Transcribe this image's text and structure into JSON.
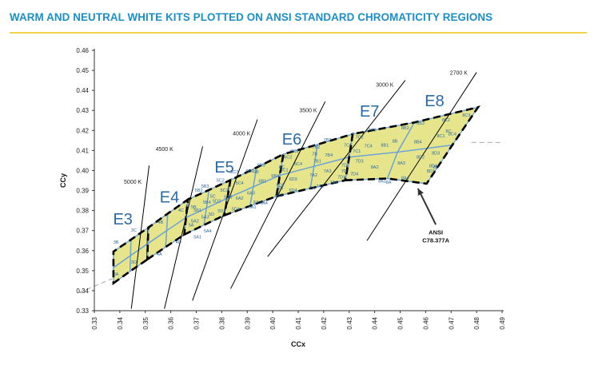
{
  "page": {
    "title": "WARM AND NEUTRAL WHITE KITS PLOTTED ON ANSI STANDARD CHROMATICITY REGIONS"
  },
  "colors": {
    "title": "#1a8fc9",
    "rule": "#f6d24a",
    "region_fill": "#e6e58c",
    "region_grid": "#6aa3d8",
    "dashed_boundary": "#000000",
    "label_blue": "#2a6aa8"
  },
  "chart_data": {
    "type": "scatter",
    "title": "",
    "xlabel": "CCx",
    "ylabel": "CCy",
    "xlim": [
      0.33,
      0.49
    ],
    "ylim": [
      0.33,
      0.46
    ],
    "x_ticks": [
      "0.33",
      "0.34",
      "0.35",
      "0.36",
      "0.37",
      "0.38",
      "0.39",
      "0.40",
      "0.41",
      "0.42",
      "0.43",
      "0.44",
      "0.45",
      "0.46",
      "0.47",
      "0.48",
      "0.49"
    ],
    "y_ticks": [
      "0.33",
      "0.34",
      "0.35",
      "0.36",
      "0.37",
      "0.38",
      "0.39",
      "0.40",
      "0.41",
      "0.42",
      "0.43",
      "0.44",
      "0.45",
      "0.46"
    ],
    "grid": "none",
    "cct_lines": [
      {
        "label": "5000 K",
        "from": [
          0.3445,
          0.331
        ],
        "to": [
          0.3515,
          0.4025
        ]
      },
      {
        "label": "4500 K",
        "from": [
          0.3575,
          0.331
        ],
        "to": [
          0.3725,
          0.412
        ]
      },
      {
        "label": "4000 K",
        "from": [
          0.3685,
          0.335
        ],
        "to": [
          0.394,
          0.4255
        ]
      },
      {
        "label": "3500 K",
        "from": [
          0.3835,
          0.341
        ],
        "to": [
          0.4206,
          0.4344
        ]
      },
      {
        "label": "3000 K",
        "from": [
          0.398,
          0.357
        ],
        "to": [
          0.452,
          0.445
        ]
      },
      {
        "label": "2700 K",
        "from": [
          0.437,
          0.365
        ],
        "to": [
          0.48,
          0.449
        ]
      }
    ],
    "cct_label_points": [
      {
        "label": "5000 K",
        "x": 0.3451,
        "y": 0.3935
      },
      {
        "label": "4500 K",
        "x": 0.3575,
        "y": 0.4097
      },
      {
        "label": "4000 K",
        "x": 0.3878,
        "y": 0.4176
      },
      {
        "label": "3500 K",
        "x": 0.4139,
        "y": 0.429
      },
      {
        "label": "3000 K",
        "x": 0.444,
        "y": 0.4419
      },
      {
        "label": "2700 K",
        "x": 0.473,
        "y": 0.4479
      }
    ],
    "regions": [
      {
        "label": "E3",
        "x": 0.3412,
        "y": 0.373,
        "grid": [
          [
            [
              0.3375,
              0.3437
            ],
            [
              0.344,
              0.3496
            ],
            [
              0.3508,
              0.3556
            ]
          ],
          [
            [
              0.3375,
              0.3515
            ],
            [
              0.3442,
              0.3575
            ],
            [
              0.351,
              0.3635
            ]
          ],
          [
            [
              0.3375,
              0.3595
            ],
            [
              0.3444,
              0.3655
            ],
            [
              0.3512,
              0.3715
            ]
          ]
        ]
      },
      {
        "label": "E4",
        "x": 0.3595,
        "y": 0.384,
        "grid": [
          [
            [
              0.3508,
              0.3556
            ],
            [
              0.358,
              0.3618
            ],
            [
              0.3653,
              0.368
            ]
          ],
          [
            [
              0.351,
              0.3635
            ],
            [
              0.3584,
              0.37
            ],
            [
              0.366,
              0.3765
            ]
          ],
          [
            [
              0.3512,
              0.3715
            ],
            [
              0.3588,
              0.3785
            ],
            [
              0.3667,
              0.3855
            ]
          ]
        ]
      },
      {
        "label": "E5",
        "x": 0.381,
        "y": 0.399,
        "grid": [
          [
            [
              0.3653,
              0.368
            ],
            [
              0.373,
              0.3728
            ],
            [
              0.381,
              0.3776
            ]
          ],
          [
            [
              0.366,
              0.3765
            ],
            [
              0.374,
              0.3813
            ],
            [
              0.3822,
              0.3862
            ]
          ],
          [
            [
              0.3667,
              0.3855
            ],
            [
              0.375,
              0.3903
            ],
            [
              0.3834,
              0.3952
            ]
          ]
        ]
      },
      {
        "label": "E6",
        "x": 0.4075,
        "y": 0.413,
        "grid": [
          [
            [
              0.381,
              0.3776
            ],
            [
              0.3911,
              0.3823
            ],
            [
              0.4015,
              0.3871
            ]
          ],
          [
            [
              0.3822,
              0.3862
            ],
            [
              0.3924,
              0.3919
            ],
            [
              0.4028,
              0.3976
            ]
          ],
          [
            [
              0.3834,
              0.3952
            ],
            [
              0.3937,
              0.4015
            ],
            [
              0.4042,
              0.4081
            ]
          ]
        ]
      },
      {
        "label": "E7",
        "x": 0.438,
        "y": 0.427,
        "grid": [
          [
            [
              0.4015,
              0.3871
            ],
            [
              0.4148,
              0.3911
            ],
            [
              0.4285,
              0.3951
            ]
          ],
          [
            [
              0.4028,
              0.3976
            ],
            [
              0.4162,
              0.4021
            ],
            [
              0.43,
              0.4067
            ]
          ],
          [
            [
              0.4042,
              0.4081
            ],
            [
              0.4176,
              0.413
            ],
            [
              0.4314,
              0.4182
            ]
          ]
        ]
      },
      {
        "label": "E8",
        "x": 0.4635,
        "y": 0.432,
        "grid": [
          [
            [
              0.4285,
              0.3951
            ],
            [
              0.445,
              0.396
            ],
            [
              0.4604,
              0.3934
            ]
          ],
          [
            [
              0.43,
              0.4067
            ],
            [
              0.449,
              0.4092
            ],
            [
              0.4705,
              0.4127
            ]
          ],
          [
            [
              0.4314,
              0.4182
            ],
            [
              0.4556,
              0.424
            ],
            [
              0.4806,
              0.4316
            ]
          ]
        ]
      }
    ],
    "cell_labels": [
      {
        "text": "3A",
        "x": 0.3385,
        "y": 0.3475
      },
      {
        "text": "3B",
        "x": 0.3385,
        "y": 0.3635
      },
      {
        "text": "3C",
        "x": 0.3455,
        "y": 0.3695
      },
      {
        "text": "3D",
        "x": 0.3455,
        "y": 0.3535
      },
      {
        "text": "4A",
        "x": 0.3555,
        "y": 0.3575
      },
      {
        "text": "4B",
        "x": 0.356,
        "y": 0.3735
      },
      {
        "text": "4C",
        "x": 0.364,
        "y": 0.3795
      },
      {
        "text": "4D",
        "x": 0.363,
        "y": 0.3635
      },
      {
        "text": "5A",
        "x": 0.368,
        "y": 0.372
      },
      {
        "text": "5B",
        "x": 0.369,
        "y": 0.381
      },
      {
        "text": "5C",
        "x": 0.3765,
        "y": 0.3865
      },
      {
        "text": "5D",
        "x": 0.376,
        "y": 0.3775
      },
      {
        "text": "5A1",
        "x": 0.3705,
        "y": 0.366
      },
      {
        "text": "5A2",
        "x": 0.3695,
        "y": 0.374
      },
      {
        "text": "5A3",
        "x": 0.3735,
        "y": 0.376
      },
      {
        "text": "5A4",
        "x": 0.3745,
        "y": 0.369
      },
      {
        "text": "5B1",
        "x": 0.3705,
        "y": 0.3795
      },
      {
        "text": "5B2",
        "x": 0.371,
        "y": 0.3895
      },
      {
        "text": "5B3",
        "x": 0.3735,
        "y": 0.3915
      },
      {
        "text": "5B4",
        "x": 0.3742,
        "y": 0.3835
      },
      {
        "text": "5C1",
        "x": 0.381,
        "y": 0.3895
      },
      {
        "text": "5C2",
        "x": 0.3795,
        "y": 0.3945
      },
      {
        "text": "5C3",
        "x": 0.385,
        "y": 0.3985
      },
      {
        "text": "5C4",
        "x": 0.387,
        "y": 0.393
      },
      {
        "text": "5D1",
        "x": 0.38,
        "y": 0.379
      },
      {
        "text": "5D2",
        "x": 0.378,
        "y": 0.384
      },
      {
        "text": "5D3",
        "x": 0.3825,
        "y": 0.386
      },
      {
        "text": "5D4",
        "x": 0.3855,
        "y": 0.38
      },
      {
        "text": "6A",
        "x": 0.3935,
        "y": 0.3835
      },
      {
        "text": "6B",
        "x": 0.3935,
        "y": 0.3985
      },
      {
        "text": "6C",
        "x": 0.4035,
        "y": 0.401
      },
      {
        "text": "6D",
        "x": 0.403,
        "y": 0.3905
      },
      {
        "text": "6A1",
        "x": 0.392,
        "y": 0.381
      },
      {
        "text": "6A2",
        "x": 0.387,
        "y": 0.3855
      },
      {
        "text": "6A3",
        "x": 0.3915,
        "y": 0.388
      },
      {
        "text": "6A4",
        "x": 0.3965,
        "y": 0.383
      },
      {
        "text": "6B1",
        "x": 0.396,
        "y": 0.394
      },
      {
        "text": "6B2",
        "x": 0.391,
        "y": 0.399
      },
      {
        "text": "6B3",
        "x": 0.3955,
        "y": 0.402
      },
      {
        "text": "6B4",
        "x": 0.401,
        "y": 0.3965
      },
      {
        "text": "6C1",
        "x": 0.4045,
        "y": 0.3995
      },
      {
        "text": "6C2",
        "x": 0.406,
        "y": 0.406
      },
      {
        "text": "6C3",
        "x": 0.4085,
        "y": 0.409
      },
      {
        "text": "6C4",
        "x": 0.41,
        "y": 0.4025
      },
      {
        "text": "6D1",
        "x": 0.4025,
        "y": 0.387
      },
      {
        "text": "6D2",
        "x": 0.403,
        "y": 0.392
      },
      {
        "text": "6D3",
        "x": 0.408,
        "y": 0.395
      },
      {
        "text": "6D4",
        "x": 0.408,
        "y": 0.3895
      },
      {
        "text": "7A",
        "x": 0.4155,
        "y": 0.3905
      },
      {
        "text": "7B",
        "x": 0.4165,
        "y": 0.4075
      },
      {
        "text": "7C",
        "x": 0.429,
        "y": 0.412
      },
      {
        "text": "7D",
        "x": 0.428,
        "y": 0.399
      },
      {
        "text": "7A1",
        "x": 0.4185,
        "y": 0.3915
      },
      {
        "text": "7A2",
        "x": 0.416,
        "y": 0.397
      },
      {
        "text": "7A3",
        "x": 0.4215,
        "y": 0.399
      },
      {
        "text": "7A4",
        "x": 0.424,
        "y": 0.3935
      },
      {
        "text": "7B1",
        "x": 0.4175,
        "y": 0.404
      },
      {
        "text": "7B2",
        "x": 0.417,
        "y": 0.411
      },
      {
        "text": "7B3",
        "x": 0.4215,
        "y": 0.4145
      },
      {
        "text": "7B4",
        "x": 0.422,
        "y": 0.407
      },
      {
        "text": "7C1",
        "x": 0.433,
        "y": 0.409
      },
      {
        "text": "7C2",
        "x": 0.434,
        "y": 0.416
      },
      {
        "text": "7C3",
        "x": 0.439,
        "y": 0.4195
      },
      {
        "text": "7C4",
        "x": 0.4375,
        "y": 0.4115
      },
      {
        "text": "7D1",
        "x": 0.427,
        "y": 0.396
      },
      {
        "text": "7D2",
        "x": 0.4285,
        "y": 0.402
      },
      {
        "text": "7D3",
        "x": 0.434,
        "y": 0.404
      },
      {
        "text": "7D4",
        "x": 0.432,
        "y": 0.3975
      },
      {
        "text": "8A",
        "x": 0.4455,
        "y": 0.3935
      },
      {
        "text": "8B",
        "x": 0.448,
        "y": 0.414
      },
      {
        "text": "8C",
        "x": 0.469,
        "y": 0.419
      },
      {
        "text": "8D",
        "x": 0.464,
        "y": 0.401
      },
      {
        "text": "8A1",
        "x": 0.443,
        "y": 0.394
      },
      {
        "text": "8A2",
        "x": 0.44,
        "y": 0.401
      },
      {
        "text": "8A3",
        "x": 0.4505,
        "y": 0.403
      },
      {
        "text": "8A4",
        "x": 0.452,
        "y": 0.3955
      },
      {
        "text": "8B1",
        "x": 0.444,
        "y": 0.412
      },
      {
        "text": "8B2",
        "x": 0.452,
        "y": 0.4205
      },
      {
        "text": "8B3",
        "x": 0.458,
        "y": 0.423
      },
      {
        "text": "8B4",
        "x": 0.457,
        "y": 0.4135
      },
      {
        "text": "8C1",
        "x": 0.466,
        "y": 0.4165
      },
      {
        "text": "8C2",
        "x": 0.468,
        "y": 0.4245
      },
      {
        "text": "8C3",
        "x": 0.476,
        "y": 0.427
      },
      {
        "text": "8C4",
        "x": 0.4705,
        "y": 0.4175
      },
      {
        "text": "8D1",
        "x": 0.462,
        "y": 0.399
      },
      {
        "text": "8D2",
        "x": 0.458,
        "y": 0.406
      },
      {
        "text": "8D3",
        "x": 0.464,
        "y": 0.408
      },
      {
        "text": "8D4",
        "x": 0.463,
        "y": 0.4015
      }
    ],
    "blackbody_dashes": [
      [
        0.324,
        0.339
      ],
      [
        0.337,
        0.346
      ],
      [
        0.478,
        0.414
      ],
      [
        0.49,
        0.414
      ]
    ],
    "annotation": {
      "line1": "ANSI",
      "line2": "C78.377A",
      "text_x": 0.464,
      "text_y": 0.368,
      "arrow_from": [
        0.464,
        0.373
      ],
      "arrow_to": [
        0.457,
        0.391
      ]
    }
  }
}
